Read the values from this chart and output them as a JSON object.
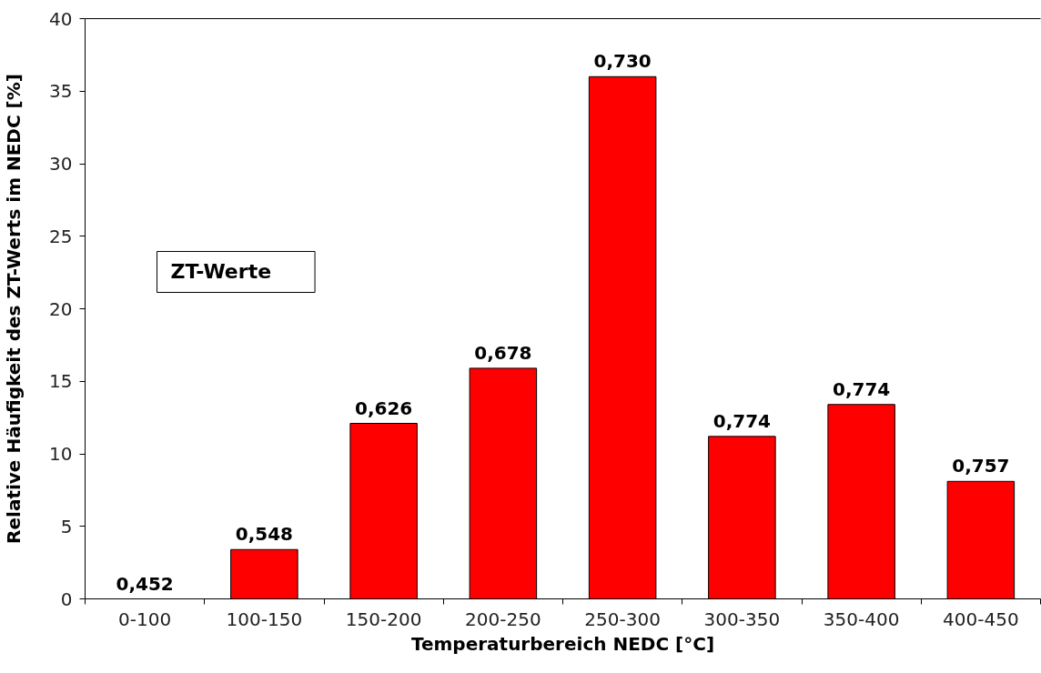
{
  "chart_data": {
    "type": "bar",
    "xlabel": "Temperaturbereich NEDC [°C]",
    "ylabel": "Relative Häufigkeit des ZT-Werts im NEDC [%]",
    "categories": [
      "0-100",
      "100-150",
      "150-200",
      "200-250",
      "250-300",
      "300-350",
      "350-400",
      "400-450"
    ],
    "values": [
      0,
      3.4,
      12.1,
      15.9,
      36.0,
      11.2,
      13.4,
      8.1
    ],
    "color": "#ff0000",
    "ylim": [
      0,
      40
    ],
    "yticks": [
      0,
      5,
      10,
      15,
      20,
      25,
      30,
      35,
      40
    ],
    "grid": false,
    "annotations": [
      "ZT-Werte",
      {
        "text": "0,452",
        "x": "0-100",
        "y": 0
      },
      {
        "text": "0,548",
        "x": "100-150",
        "y": 3.4
      },
      {
        "text": "0,626",
        "x": "150-200",
        "y": 12.1
      },
      {
        "text": "0,678",
        "x": "200-250",
        "y": 15.9
      },
      {
        "text": "0,730",
        "x": "250-300",
        "y": 36.0
      },
      {
        "text": "0,774",
        "x": "300-350",
        "y": 11.2
      },
      {
        "text": "0,774",
        "x": "350-400",
        "y": 13.4
      },
      {
        "text": "0,757",
        "x": "400-450",
        "y": 8.1
      }
    ]
  }
}
